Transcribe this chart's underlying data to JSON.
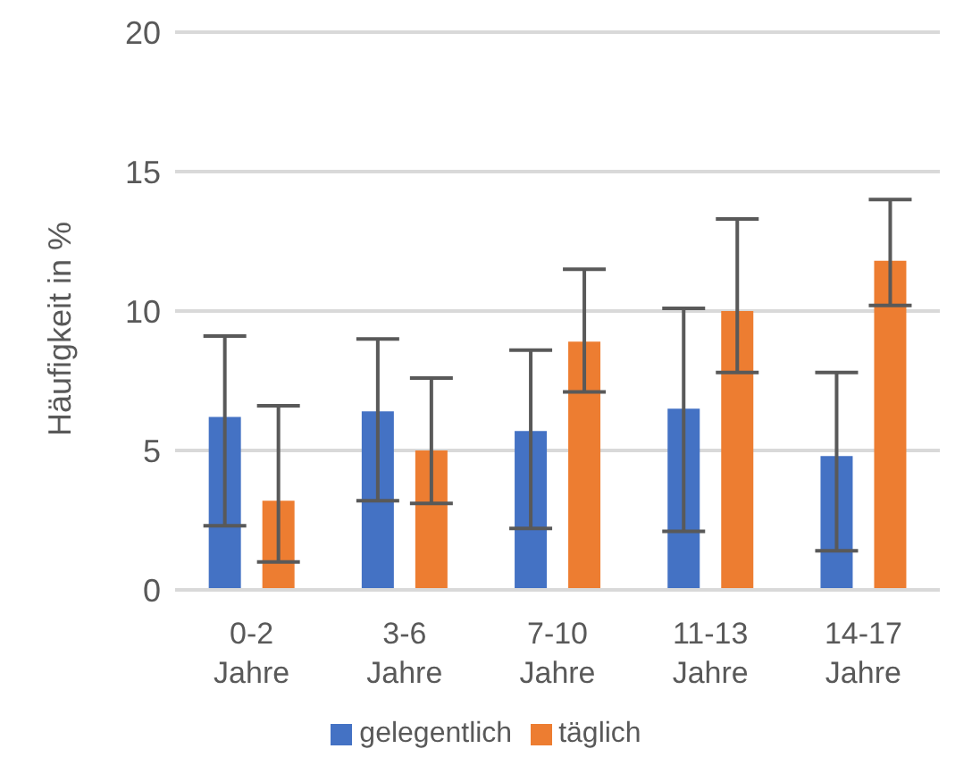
{
  "chart_data": {
    "type": "bar",
    "ylabel": "Häufigkeit in %",
    "categories": [
      "0-2 Jahre",
      "3-6 Jahre",
      "7-10 Jahre",
      "11-13 Jahre",
      "14-17 Jahre"
    ],
    "series": [
      {
        "name": "gelegentlich",
        "color": "#4472c4",
        "values": [
          6.2,
          6.4,
          5.7,
          6.5,
          4.8
        ],
        "errors": [
          [
            2.3,
            9.1
          ],
          [
            3.2,
            9.0
          ],
          [
            2.2,
            8.6
          ],
          [
            2.1,
            10.1
          ],
          [
            1.4,
            7.8
          ]
        ]
      },
      {
        "name": "täglich",
        "color": "#ed7d31",
        "values": [
          3.2,
          5.0,
          8.9,
          10.0,
          11.8
        ],
        "errors": [
          [
            1.0,
            6.6
          ],
          [
            3.1,
            7.6
          ],
          [
            7.1,
            11.5
          ],
          [
            7.8,
            13.3
          ],
          [
            10.2,
            14.0
          ]
        ]
      }
    ],
    "ylim": [
      0,
      20
    ],
    "yticks": [
      0,
      5,
      10,
      15,
      20
    ],
    "grid": "y",
    "legend": "bottom"
  }
}
